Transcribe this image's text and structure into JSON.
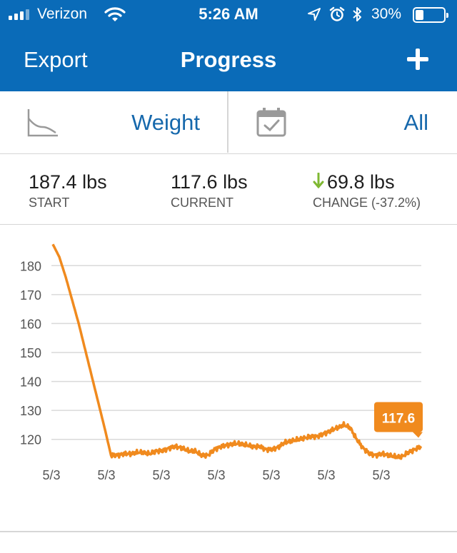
{
  "status_bar": {
    "carrier": "Verizon",
    "time": "5:26 AM",
    "battery_percent": "30%",
    "battery_level": 0.3,
    "icons": [
      "signal-icon",
      "wifi-icon",
      "location-icon",
      "alarm-icon",
      "bluetooth-icon",
      "battery-icon"
    ]
  },
  "nav": {
    "export_label": "Export",
    "title": "Progress",
    "add_icon": "plus-icon"
  },
  "selector": {
    "metric_label": "Weight",
    "range_label": "All",
    "metric_icon": "line-chart-icon",
    "range_icon": "calendar-check-icon"
  },
  "stats": {
    "start_value": "187.4 lbs",
    "start_label": "START",
    "current_value": "117.6 lbs",
    "current_label": "CURRENT",
    "change_value": "69.8 lbs",
    "change_label": "CHANGE (-37.2%)",
    "change_icon": "arrow-down-icon"
  },
  "colors": {
    "header_bg": "#0a6bb8",
    "accent_blue": "#1668ac",
    "line_orange": "#f08a1e",
    "change_arrow_green": "#7fb832"
  },
  "chart_data": {
    "type": "line",
    "x_tick_labels": [
      "5/3",
      "5/3",
      "5/3",
      "5/3",
      "5/3",
      "5/3",
      "5/3"
    ],
    "y_ticks": [
      120,
      130,
      140,
      150,
      160,
      170,
      180
    ],
    "ylim": [
      115,
      185
    ],
    "grid": true,
    "series": [
      {
        "values": [
          187.4,
          183,
          176,
          168,
          160,
          151,
          142,
          133,
          124,
          114.5,
          114.5,
          115,
          115,
          115.5,
          115.5,
          115,
          116,
          116,
          117,
          117.5,
          117,
          116,
          116,
          114.5,
          114.5,
          116.5,
          117.5,
          118,
          118.5,
          118.5,
          118,
          117.5,
          117.5,
          116.5,
          116.5,
          117.5,
          119,
          119.5,
          120,
          120.5,
          121,
          121,
          122,
          123,
          124,
          125,
          124,
          120,
          117,
          115,
          114.5,
          115,
          114.5,
          114,
          114,
          115.5,
          116.5,
          117.6
        ]
      }
    ],
    "current_callout": "117.6"
  }
}
